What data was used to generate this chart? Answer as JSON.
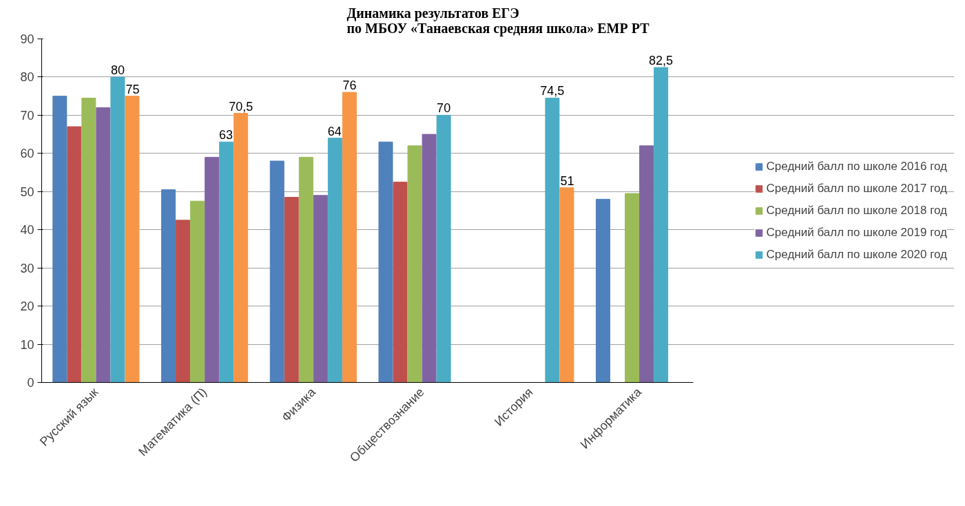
{
  "chart_data": {
    "type": "bar",
    "title": "Динамика результатов ЕГЭ\nпо МБОУ «Танаевская средняя школа» ЕМР РТ",
    "categories": [
      "Русский язык",
      "Математика (П)",
      "Физика",
      "Обществознание",
      "История",
      "Информатика"
    ],
    "series": [
      {
        "name": "Средний балл по школе 2016 год",
        "color": "#4f81bd",
        "values": [
          75,
          50.5,
          58,
          63,
          0,
          48
        ]
      },
      {
        "name": "Средний балл по школе 2017 год",
        "color": "#c0504d",
        "values": [
          67,
          42.5,
          48.5,
          52.5,
          0,
          0
        ]
      },
      {
        "name": "Средний балл по школе 2018 год",
        "color": "#9bbb59",
        "values": [
          74.5,
          47.5,
          59,
          62,
          0,
          49.5
        ]
      },
      {
        "name": "Средний балл по школе 2019 год",
        "color": "#8064a2",
        "values": [
          72,
          59,
          49,
          65,
          0,
          62
        ]
      },
      {
        "name": "Средний балл по школе 2020 год",
        "color": "#4bacc6",
        "values": [
          80,
          63,
          64,
          70,
          74.5,
          82.5
        ],
        "value_labels": [
          "80",
          "63",
          "64",
          "70",
          "74,5",
          "82,5"
        ]
      },
      {
        "color": "#f79646",
        "values": [
          75,
          70.5,
          76,
          null,
          51,
          null
        ],
        "value_labels": [
          "75",
          "70,5",
          "76",
          null,
          "51",
          null
        ]
      }
    ],
    "ylim": [
      0,
      90
    ],
    "yticks": [
      0,
      10,
      20,
      30,
      40,
      50,
      60,
      70,
      80,
      90
    ],
    "grid": "y",
    "legend": "right"
  }
}
